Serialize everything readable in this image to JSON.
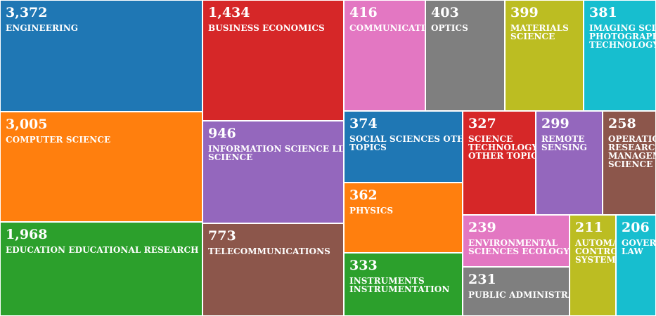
{
  "chart_data": {
    "type": "treemap",
    "title": "",
    "items": [
      {
        "value_label": "3,372",
        "value": 3372,
        "name": [
          "ENGINEERING"
        ],
        "color": "#1f77b4"
      },
      {
        "value_label": "3,005",
        "value": 3005,
        "name": [
          "COMPUTER SCIENCE"
        ],
        "color": "#ff7f0e"
      },
      {
        "value_label": "1,968",
        "value": 1968,
        "name": [
          "EDUCATION EDUCATIONAL RESEARCH"
        ],
        "color": "#2ca02c"
      },
      {
        "value_label": "1,434",
        "value": 1434,
        "name": [
          "BUSINESS ECONOMICS"
        ],
        "color": "#d62728"
      },
      {
        "value_label": "946",
        "value": 946,
        "name": [
          "INFORMATION SCIENCE LIBRARY",
          "SCIENCE"
        ],
        "color": "#9467bd"
      },
      {
        "value_label": "773",
        "value": 773,
        "name": [
          "TELECOMMUNICATIONS"
        ],
        "color": "#8c564b"
      },
      {
        "value_label": "416",
        "value": 416,
        "name": [
          "COMMUNICATION"
        ],
        "color": "#e377c2"
      },
      {
        "value_label": "403",
        "value": 403,
        "name": [
          "OPTICS"
        ],
        "color": "#7f7f7f"
      },
      {
        "value_label": "399",
        "value": 399,
        "name": [
          "MATERIALS",
          "SCIENCE"
        ],
        "color": "#bcbd22"
      },
      {
        "value_label": "381",
        "value": 381,
        "name": [
          "IMAGING SCIENCE",
          "PHOTOGRAPHIC",
          "TECHNOLOGY"
        ],
        "color": "#17becf"
      },
      {
        "value_label": "374",
        "value": 374,
        "name": [
          "SOCIAL SCIENCES OTHER",
          "TOPICS"
        ],
        "color": "#1f77b4"
      },
      {
        "value_label": "362",
        "value": 362,
        "name": [
          "PHYSICS"
        ],
        "color": "#ff7f0e"
      },
      {
        "value_label": "333",
        "value": 333,
        "name": [
          "INSTRUMENTS",
          "INSTRUMENTATION"
        ],
        "color": "#2ca02c"
      },
      {
        "value_label": "327",
        "value": 327,
        "name": [
          "SCIENCE",
          "TECHNOLOGY",
          "OTHER TOPICS"
        ],
        "color": "#d62728"
      },
      {
        "value_label": "299",
        "value": 299,
        "name": [
          "REMOTE",
          "SENSING"
        ],
        "color": "#9467bd"
      },
      {
        "value_label": "258",
        "value": 258,
        "name": [
          "OPERATIONS",
          "RESEARCH",
          "MANAGEMENT",
          "SCIENCE"
        ],
        "color": "#8c564b"
      },
      {
        "value_label": "239",
        "value": 239,
        "name": [
          "ENVIRONMENTAL",
          "SCIENCES ECOLOGY"
        ],
        "color": "#e377c2"
      },
      {
        "value_label": "231",
        "value": 231,
        "name": [
          "PUBLIC ADMINISTRATION"
        ],
        "color": "#7f7f7f"
      },
      {
        "value_label": "211",
        "value": 211,
        "name": [
          "AUTOMATION",
          "CONTROL",
          "SYSTEMS"
        ],
        "color": "#bcbd22"
      },
      {
        "value_label": "206",
        "value": 206,
        "name": [
          "GOVERNMENT",
          "LAW"
        ],
        "color": "#17becf"
      }
    ]
  }
}
